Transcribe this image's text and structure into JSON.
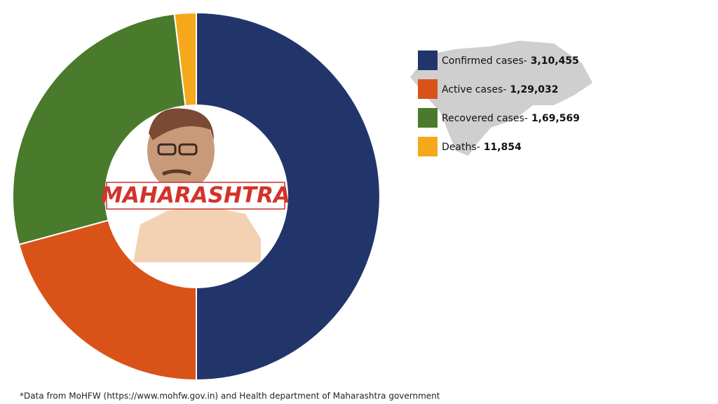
{
  "chart_data": {
    "type": "donut",
    "categories": [
      "Confirmed cases-",
      "Active cases-",
      "Recovered cases-",
      "Deaths-"
    ],
    "values": [
      310455,
      129032,
      169569,
      11854
    ],
    "value_labels": [
      "3,10,455",
      "1,29,032",
      "1,69,569",
      "11,854"
    ],
    "colors": [
      "#22356b",
      "#d95319",
      "#4a7a2c",
      "#f5a91a"
    ],
    "center_label": "MAHARASHTRA",
    "note": "*Data from MoHFW (https://www.mohfw.gov.in) and Health department of Maharashtra government"
  }
}
